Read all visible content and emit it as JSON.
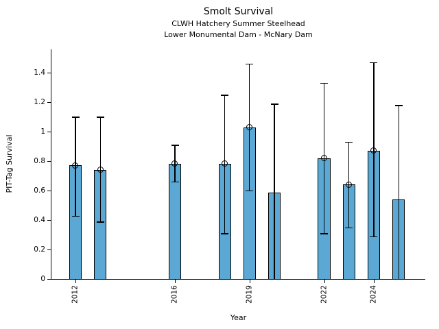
{
  "chart_data": {
    "type": "bar",
    "title": "Smolt Survival",
    "subtitle1": "CLWH Hatchery Summer Steelhead",
    "subtitle2": "Lower Monumental Dam - McNary Dam",
    "xlabel": "Year",
    "ylabel": "PIT-Tag Survival",
    "bar_color": "#5BA8D4",
    "bar_edge_color": "#000000",
    "error_color": "#000000",
    "grid": false,
    "legend": null,
    "xlim": [
      2011.03,
      2026.07
    ],
    "ylim": [
      0,
      1.558
    ],
    "bar_width_years": 0.5,
    "x_ticks": [
      2012,
      2016,
      2019,
      2022,
      2024
    ],
    "x_tick_labels": [
      "2012",
      "2016",
      "2019",
      "2022",
      "2024"
    ],
    "y_ticks": [
      0,
      0.2,
      0.4,
      0.6,
      0.8,
      1.0,
      1.2,
      1.4
    ],
    "y_tick_labels": [
      "0",
      "0.2",
      "0.4",
      "0.6",
      "0.8",
      "1",
      "1.2",
      "1.4"
    ],
    "points": [
      {
        "year": 2012,
        "survival": 0.77,
        "ci_low": 0.43,
        "ci_high": 1.1,
        "point_marker": true
      },
      {
        "year": 2013,
        "survival": 0.74,
        "ci_low": 0.39,
        "ci_high": 1.1,
        "point_marker": true
      },
      {
        "year": 2016,
        "survival": 0.78,
        "ci_low": 0.66,
        "ci_high": 0.91,
        "point_marker": true
      },
      {
        "year": 2018,
        "survival": 0.78,
        "ci_low": 0.31,
        "ci_high": 1.25,
        "point_marker": true
      },
      {
        "year": 2019,
        "survival": 1.03,
        "ci_low": 0.6,
        "ci_high": 1.46,
        "point_marker": true
      },
      {
        "year": 2020,
        "survival": 0.585,
        "ci_low": 0.0,
        "ci_high": 1.19,
        "point_marker": false
      },
      {
        "year": 2022,
        "survival": 0.82,
        "ci_low": 0.31,
        "ci_high": 1.33,
        "point_marker": true
      },
      {
        "year": 2023,
        "survival": 0.64,
        "ci_low": 0.35,
        "ci_high": 0.93,
        "point_marker": true
      },
      {
        "year": 2024,
        "survival": 0.87,
        "ci_low": 0.29,
        "ci_high": 1.47,
        "point_marker": true
      },
      {
        "year": 2025,
        "survival": 0.54,
        "ci_low": 0.0,
        "ci_high": 1.18,
        "point_marker": false
      }
    ]
  }
}
